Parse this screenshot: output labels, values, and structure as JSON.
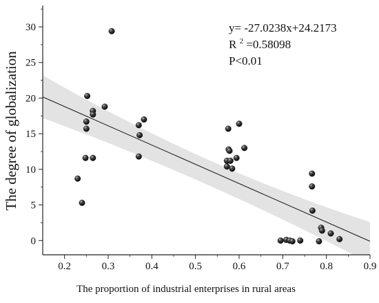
{
  "chart_data": {
    "type": "scatter",
    "xlabel": "The proportion of industrial enterprises in rural areas",
    "ylabel": "The degree of globalization",
    "xlim": [
      0.15,
      0.9
    ],
    "ylim": [
      -2,
      33
    ],
    "xticks": [
      0.2,
      0.3,
      0.4,
      0.5,
      0.6,
      0.7,
      0.8,
      0.9
    ],
    "yticks": [
      0,
      5,
      10,
      15,
      20,
      25,
      30
    ],
    "grid": false,
    "legend": "none",
    "series": [
      {
        "points": [
          [
            0.308,
            29.4
          ],
          [
            0.252,
            20.3
          ],
          [
            0.292,
            18.8
          ],
          [
            0.265,
            18.2
          ],
          [
            0.265,
            17.7
          ],
          [
            0.25,
            16.7
          ],
          [
            0.25,
            15.7
          ],
          [
            0.382,
            17.0
          ],
          [
            0.37,
            16.2
          ],
          [
            0.372,
            14.8
          ],
          [
            0.37,
            11.8
          ],
          [
            0.248,
            11.6
          ],
          [
            0.265,
            11.6
          ],
          [
            0.23,
            8.7
          ],
          [
            0.24,
            5.3
          ],
          [
            0.6,
            16.4
          ],
          [
            0.575,
            15.7
          ],
          [
            0.612,
            13.0
          ],
          [
            0.576,
            12.8
          ],
          [
            0.578,
            12.6
          ],
          [
            0.594,
            11.6
          ],
          [
            0.572,
            11.2
          ],
          [
            0.58,
            11.2
          ],
          [
            0.572,
            10.4
          ],
          [
            0.584,
            10.1
          ],
          [
            0.767,
            9.4
          ],
          [
            0.767,
            7.6
          ],
          [
            0.768,
            4.2
          ],
          [
            0.788,
            1.8
          ],
          [
            0.79,
            1.4
          ],
          [
            0.81,
            1.0
          ],
          [
            0.83,
            0.2
          ],
          [
            0.695,
            0.0
          ],
          [
            0.708,
            0.1
          ],
          [
            0.716,
            0.0
          ],
          [
            0.722,
            -0.1
          ],
          [
            0.74,
            0.0
          ],
          [
            0.783,
            -0.1
          ]
        ]
      }
    ],
    "fit": {
      "slope": -27.0238,
      "intercept": 24.2173,
      "x_range": [
        0.15,
        0.9
      ],
      "ci_upper_at_start": 23.2,
      "ci_lower_at_start": 17.2,
      "ci_upper_at_mid": 10.6,
      "ci_lower_at_mid": 8.2,
      "ci_upper_at_end": 2.6,
      "ci_lower_at_end": -3.2
    },
    "annotations": {
      "equation": "y= -27.0238x+24.2173",
      "r2_prefix": "R",
      "r2_sup": "2",
      "r2_value": "=0.58098",
      "p_value": "P<0.01"
    }
  },
  "colors": {
    "axis": "#222222",
    "marker": "#1a1a1a",
    "fit_line": "#222222",
    "ci_band": "#d9d9d9"
  }
}
